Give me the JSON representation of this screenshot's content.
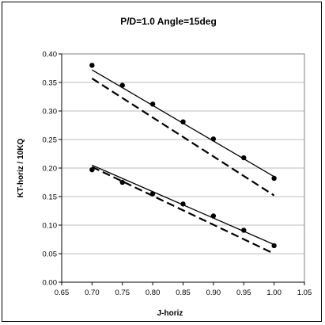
{
  "chart_data": {
    "type": "line",
    "title": "P/D=1.0  Angle=15deg",
    "xlabel": "J-horiz",
    "ylabel": "KT-horiz / 10KQ",
    "xlim": [
      0.65,
      1.05
    ],
    "ylim": [
      0.0,
      0.4
    ],
    "x_ticks": [
      "0.65",
      "0.70",
      "0.75",
      "0.80",
      "0.85",
      "0.90",
      "0.95",
      "1.00",
      "1.05"
    ],
    "y_ticks": [
      "0.00",
      "0.05",
      "0.10",
      "0.15",
      "0.20",
      "0.25",
      "0.30",
      "0.35",
      "0.40"
    ],
    "grid": "horizontal",
    "legend": "none",
    "series": [
      {
        "style": "markers",
        "color": "#000000",
        "x": [
          0.7,
          0.75,
          0.8,
          0.85,
          0.9,
          0.95,
          1.0
        ],
        "y": [
          0.38,
          0.345,
          0.312,
          0.281,
          0.251,
          0.218,
          0.182
        ]
      },
      {
        "style": "solid",
        "color": "#000000",
        "x": [
          0.7,
          1.0
        ],
        "y": [
          0.372,
          0.185
        ]
      },
      {
        "style": "dashed",
        "color": "#000000",
        "x": [
          0.7,
          1.0
        ],
        "y": [
          0.357,
          0.152
        ]
      },
      {
        "style": "markers",
        "color": "#000000",
        "x": [
          0.7,
          0.75,
          0.8,
          0.85,
          0.9,
          0.95,
          1.0
        ],
        "y": [
          0.197,
          0.175,
          0.155,
          0.137,
          0.116,
          0.091,
          0.064
        ]
      },
      {
        "style": "solid",
        "color": "#000000",
        "x": [
          0.7,
          1.0
        ],
        "y": [
          0.205,
          0.066
        ]
      },
      {
        "style": "dashed",
        "color": "#000000",
        "x": [
          0.7,
          1.0
        ],
        "y": [
          0.202,
          0.05
        ]
      }
    ]
  }
}
